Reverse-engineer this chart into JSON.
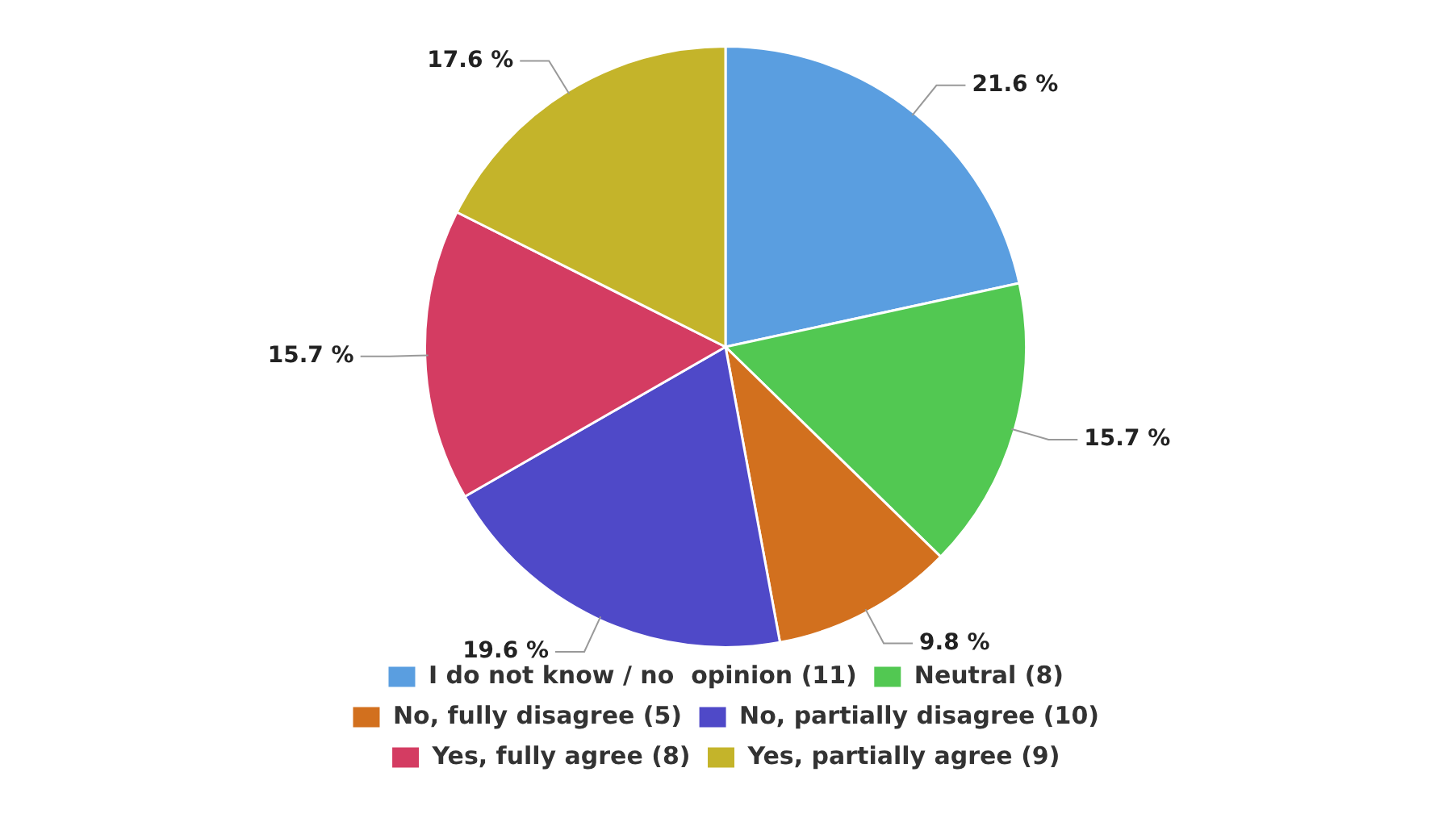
{
  "chart_data": {
    "type": "pie",
    "categories": [
      "I do not know / no  opinion (11)",
      "Neutral (8)",
      "No, fully disagree (5)",
      "No, partially disagree (10)",
      "Yes, fully agree (8)",
      "Yes, partially agree (9)"
    ],
    "values": [
      21.6,
      15.7,
      9.8,
      19.6,
      15.7,
      17.6
    ],
    "value_labels": [
      "21.6 %",
      "15.7 %",
      "9.8 %",
      "19.6 %",
      "15.7 %",
      "17.6 %"
    ],
    "colors": [
      "#5a9ee0",
      "#52c852",
      "#d2701e",
      "#4f49c8",
      "#d43c62",
      "#c4b42a"
    ],
    "legend": "bottom"
  }
}
